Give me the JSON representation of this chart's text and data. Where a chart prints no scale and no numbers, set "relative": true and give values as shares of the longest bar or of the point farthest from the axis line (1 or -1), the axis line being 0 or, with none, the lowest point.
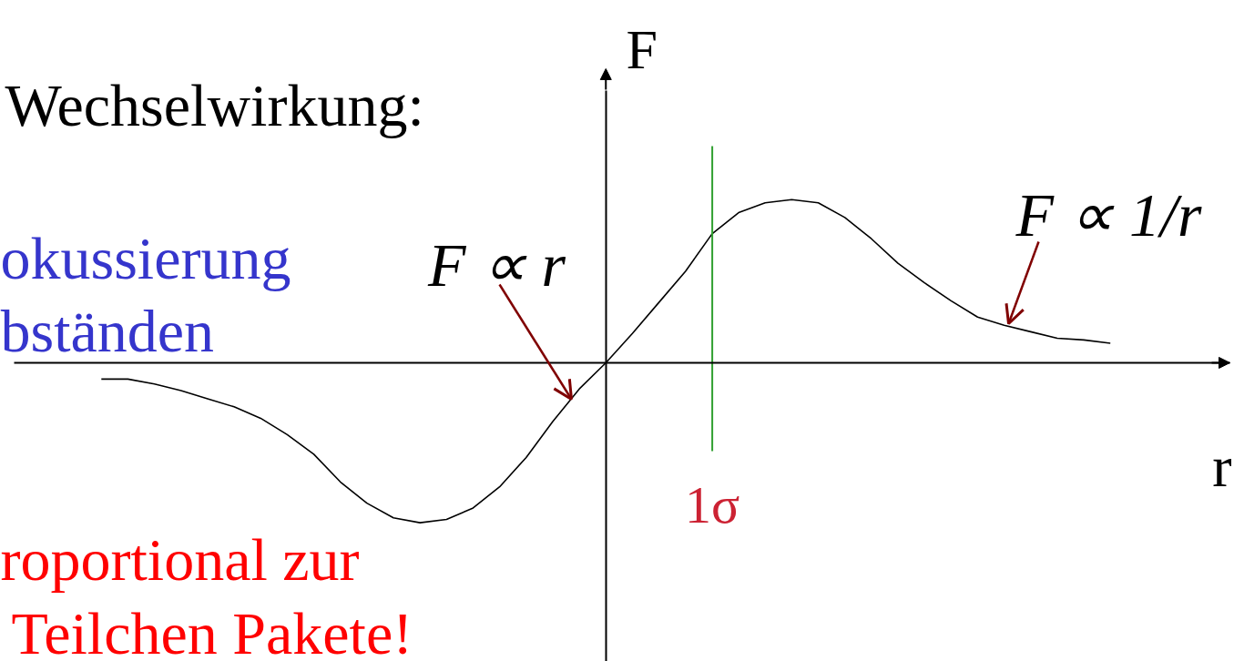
{
  "chart_data": {
    "type": "line",
    "relative": true,
    "xlabel": "r",
    "ylabel": "F",
    "categories": [
      null,
      null,
      null,
      null,
      null,
      null,
      null,
      null,
      null,
      null,
      null,
      null,
      null,
      null,
      null,
      null,
      null,
      null,
      null,
      null,
      null,
      null,
      null,
      null,
      null,
      null,
      null,
      null,
      null,
      null,
      null,
      null,
      null,
      null,
      null,
      null,
      null,
      null,
      null
    ],
    "series": [
      {
        "color": "#000000",
        "values": [
          -0.1,
          -0.1,
          -0.13,
          -0.17,
          -0.22,
          -0.27,
          -0.34,
          -0.44,
          -0.56,
          -0.73,
          -0.86,
          -0.95,
          -0.98,
          -0.96,
          -0.89,
          -0.76,
          -0.58,
          -0.36,
          -0.16,
          0,
          0.18,
          0.37,
          0.56,
          0.79,
          0.92,
          0.98,
          1.0,
          0.98,
          0.89,
          0.76,
          0.61,
          0.49,
          0.38,
          0.28,
          0.23,
          0.19,
          0.15,
          0.14,
          0.12
        ]
      }
    ],
    "ref_lines": [
      {
        "axis": "x",
        "label": "1σ",
        "color": "#30a030"
      }
    ],
    "annotations": [
      "F ∝ r",
      "F ∝ 1/r",
      "Wechselwirkung:",
      "okussierung",
      "bständen",
      "roportional zur",
      "Teilchen Pakete!"
    ]
  }
}
